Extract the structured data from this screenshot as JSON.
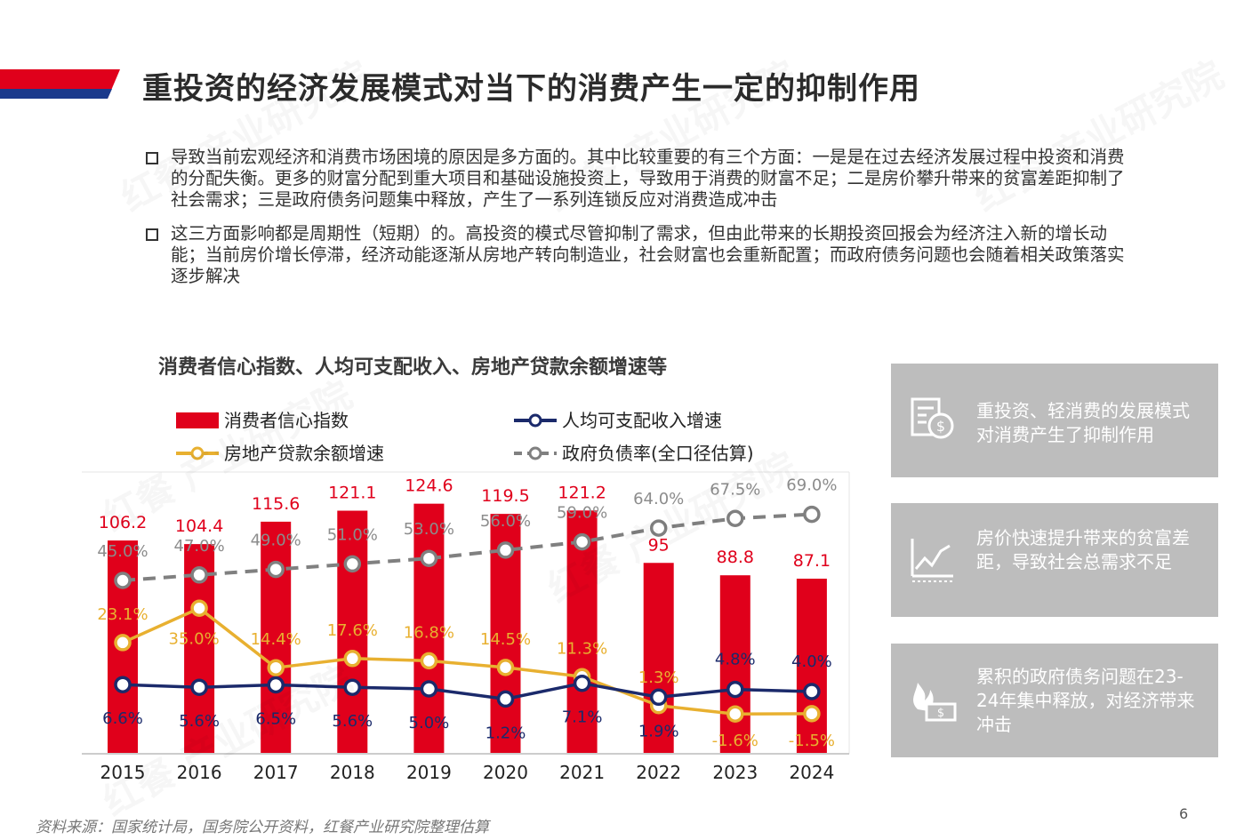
{
  "title": "重投资的经济发展模式对当下的消费产生一定的抑制作用",
  "bullets": [
    "导致当前宏观经济和消费市场困境的原因是多方面的。其中比较重要的有三个方面：一是是在过去经济发展过程中投资和消费的分配失衡。更多的财富分配到重大项目和基础设施投资上，导致用于消费的财富不足；二是房价攀升带来的贫富差距抑制了社会需求；三是政府债务问题集中释放，产生了一系列连锁反应对消费造成冲击",
    "这三方面影响都是周期性（短期）的。高投资的模式尽管抑制了需求，但由此带来的长期投资回报会为经济注入新的增长动能；当前房价增长停滞，经济动能逐渐从房地产转向制造业，社会财富也会重新配置；而政府债务问题也会随着相关政策落实逐步解决"
  ],
  "cards": [
    {
      "text": "重投资、轻消费的发展模式对消费产生了抑制作用",
      "icon": "money-document-icon"
    },
    {
      "text": "房价快速提升带来的贫富差距，导致社会总需求不足",
      "icon": "rising-chart-icon"
    },
    {
      "text": "累积的政府债务问题在23-24年集中释放，对经济带来冲击",
      "icon": "burning-money-icon"
    }
  ],
  "source": "资料来源：国家统计局，国务院公开资料，红餐产业研究院整理估算",
  "page_number": "6",
  "watermark": "红餐 产业研究院",
  "colors": {
    "red": "#e0001b",
    "navy": "#1b2a6b",
    "gold": "#e8b030",
    "gray": "#808080",
    "card_bg": "#bdbdbd"
  },
  "chart_data": {
    "type": "bar",
    "title": "消费者信心指数、人均可支配收入、房地产贷款余额增速等",
    "categories": [
      "2015",
      "2016",
      "2017",
      "2018",
      "2019",
      "2020",
      "2021",
      "2022",
      "2023",
      "2024"
    ],
    "series": [
      {
        "name": "消费者信心指数",
        "type": "bar",
        "color": "#e0001b",
        "values": [
          106.2,
          104.4,
          115.6,
          121.1,
          124.6,
          119.5,
          121.2,
          95,
          88.8,
          87.1
        ],
        "labels": [
          "106.2",
          "104.4",
          "115.6",
          "121.1",
          "124.6",
          "119.5",
          "121.2",
          "95",
          "88.8",
          "87.1"
        ]
      },
      {
        "name": "人均可支配收入增速",
        "type": "line",
        "color": "#1b2a6b",
        "unit": "%",
        "values": [
          6.6,
          5.6,
          6.5,
          5.6,
          5.0,
          1.2,
          7.1,
          1.9,
          4.8,
          4.0
        ],
        "labels": [
          "6.6%",
          "5.6%",
          "6.5%",
          "5.6%",
          "5.0%",
          "1.2%",
          "7.1%",
          "1.9%",
          "4.8%",
          "4.0%"
        ]
      },
      {
        "name": "房地产贷款余额增速",
        "type": "line",
        "color": "#e8b030",
        "unit": "%",
        "values": [
          23.1,
          35.0,
          14.4,
          17.6,
          16.8,
          14.5,
          11.3,
          1.3,
          -1.6,
          -1.5
        ],
        "labels": [
          "23.1%",
          "35.0%",
          "14.4%",
          "17.6%",
          "16.8%",
          "14.5%",
          "11.3%",
          "1.3%",
          "-1.6%",
          "-1.5%"
        ]
      },
      {
        "name": "政府负债率(全口径估算)",
        "type": "line",
        "dashed": true,
        "color": "#808080",
        "unit": "%",
        "values": [
          45.0,
          47.0,
          49.0,
          51.0,
          53.0,
          56.0,
          59.0,
          64.0,
          67.5,
          69.0
        ],
        "labels": [
          "45.0%",
          "47.0%",
          "49.0%",
          "51.0%",
          "53.0%",
          "56.0%",
          "59.0%",
          "64.0%",
          "67.5%",
          "69.0%"
        ]
      }
    ],
    "legend_position": "top",
    "grid": false
  }
}
